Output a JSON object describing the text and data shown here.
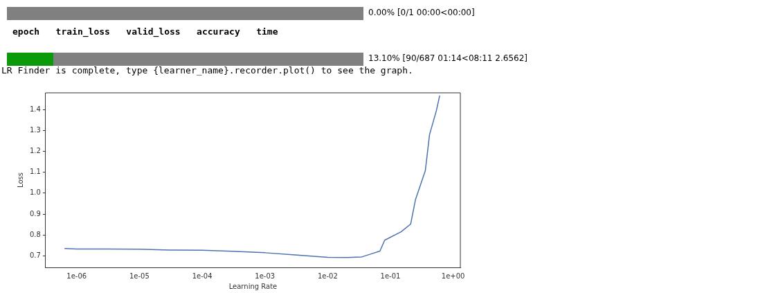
{
  "chart_data": {
    "type": "line",
    "xlabel": "Learning Rate",
    "ylabel": "Loss",
    "log": "x",
    "grid": false,
    "legend": false,
    "marker": "none",
    "line_style": "solid",
    "annotations": [
      "0.00% [0/1 00:00<00:00]",
      "epoch   train_loss   valid_loss   accuracy   time",
      "13.10% [90/687 01:14<08:11 2.6562]",
      "LR Finder is complete, type {learner_name}.recorder.plot() to see the graph."
    ],
    "xlim": [
      3.2e-07,
      1.3
    ],
    "ylim": [
      0.645,
      1.48
    ],
    "xticks": [
      {
        "value": 1e-06,
        "label": "1e-06"
      },
      {
        "value": 1e-05,
        "label": "1e-05"
      },
      {
        "value": 0.0001,
        "label": "1e-04"
      },
      {
        "value": 0.001,
        "label": "1e-03"
      },
      {
        "value": 0.01,
        "label": "1e-02"
      },
      {
        "value": 0.1,
        "label": "1e-01"
      },
      {
        "value": 1,
        "label": "1e+00"
      }
    ],
    "yticks": [
      {
        "value": 0.7,
        "label": "0.7"
      },
      {
        "value": 0.8,
        "label": "0.8"
      },
      {
        "value": 0.9,
        "label": "0.9"
      },
      {
        "value": 1,
        "label": "1.0"
      },
      {
        "value": 1.1,
        "label": "1.1"
      },
      {
        "value": 1.2,
        "label": "1.2"
      },
      {
        "value": 1.3,
        "label": "1.3"
      },
      {
        "value": 1.4,
        "label": "1.4"
      }
    ],
    "series": [
      {
        "color": "#4c72b0",
        "x": [
          6.4e-07,
          1e-06,
          3e-06,
          1e-05,
          3e-05,
          0.0001,
          0.0003,
          0.001,
          0.003,
          0.01,
          0.02,
          0.035,
          0.05,
          0.068,
          0.081,
          0.148,
          0.21,
          0.25,
          0.36,
          0.42,
          0.54,
          0.61
        ],
        "values": [
          0.735,
          0.733,
          0.733,
          0.732,
          0.728,
          0.727,
          0.722,
          0.715,
          0.705,
          0.693,
          0.692,
          0.695,
          0.71,
          0.723,
          0.775,
          0.815,
          0.852,
          0.968,
          1.108,
          1.28,
          1.395,
          1.467
        ]
      }
    ]
  }
}
